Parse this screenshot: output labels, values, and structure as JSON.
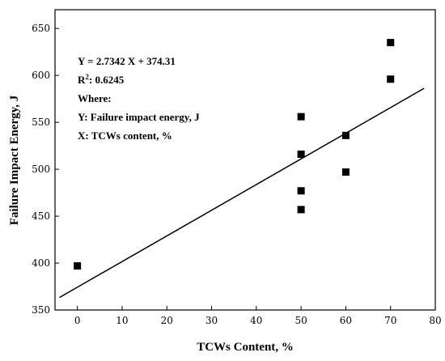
{
  "chart_data": {
    "type": "scatter",
    "xlabel": "TCWs Content, %",
    "ylabel": "Failure Impact Energy, J",
    "xlim": [
      -5,
      80
    ],
    "ylim": [
      350,
      670
    ],
    "x_ticks": [
      0,
      10,
      20,
      30,
      40,
      50,
      60,
      70,
      80
    ],
    "y_ticks": [
      350,
      400,
      450,
      500,
      550,
      600,
      650
    ],
    "grid": false,
    "series": [
      {
        "x": [
          0,
          50,
          50,
          50,
          50,
          60,
          60,
          70,
          70
        ],
        "y": [
          397,
          556,
          516,
          477,
          457,
          536,
          497,
          635,
          596
        ]
      }
    ],
    "fit_line": {
      "slope": 2.7342,
      "intercept": 374.31,
      "x_range": [
        -4,
        77.5
      ]
    },
    "annotations": {
      "equation": "Y = 2.7342 X + 374.31",
      "r2_prefix": "R",
      "r2_sup": "2",
      "r2_value": ": 0.6245",
      "where": "Where:",
      "y_def": "Y: Failure impact energy, J",
      "x_def": "X: TCWs content, %"
    }
  }
}
